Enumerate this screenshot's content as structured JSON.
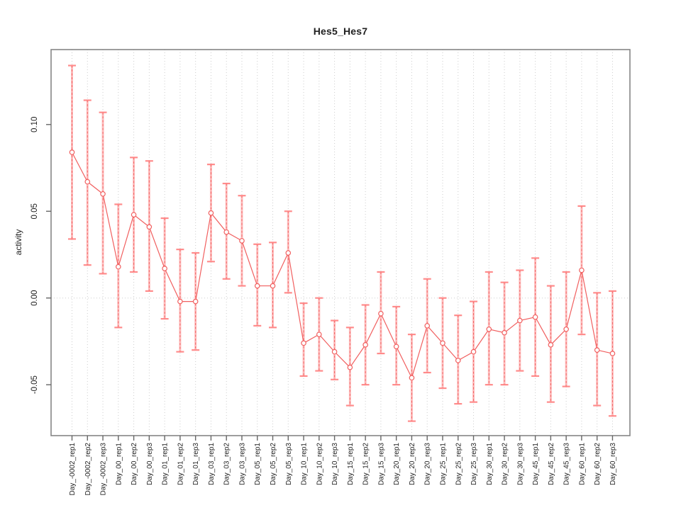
{
  "chart_data": {
    "type": "line",
    "title": "Hes5_Hes7",
    "ylabel": "activity",
    "xlabel": "",
    "ylim": [
      -0.079,
      0.143
    ],
    "yticks": [
      {
        "value": -0.05,
        "label": "-0.05"
      },
      {
        "value": 0.0,
        "label": "0.00"
      },
      {
        "value": 0.05,
        "label": "0.05"
      },
      {
        "value": 0.1,
        "label": "0.10"
      }
    ],
    "grid": {
      "vertical_dotted_per_category": true,
      "horizontal_zero_line_dotted": true
    },
    "legend": "none",
    "marker": "open-circle",
    "categories": [
      "Day_-0002_rep1",
      "Day_-0002_rep2",
      "Day_-0002_rep3",
      "Day_00_rep1",
      "Day_00_rep2",
      "Day_00_rep3",
      "Day_01_rep1",
      "Day_01_rep2",
      "Day_01_rep3",
      "Day_03_rep1",
      "Day_03_rep2",
      "Day_03_rep3",
      "Day_05_rep1",
      "Day_05_rep2",
      "Day_05_rep3",
      "Day_10_rep1",
      "Day_10_rep2",
      "Day_10_rep3",
      "Day_15_rep1",
      "Day_15_rep2",
      "Day_15_rep3",
      "Day_20_rep1",
      "Day_20_rep2",
      "Day_20_rep3",
      "Day_25_rep1",
      "Day_25_rep2",
      "Day_25_rep3",
      "Day_30_rep1",
      "Day_30_rep2",
      "Day_30_rep3",
      "Day_45_rep1",
      "Day_45_rep2",
      "Day_45_rep3",
      "Day_60_rep1",
      "Day_60_rep2",
      "Day_60_rep3"
    ],
    "series": [
      {
        "name": "activity",
        "values": [
          0.084,
          0.067,
          0.06,
          0.018,
          0.048,
          0.041,
          0.017,
          -0.002,
          -0.002,
          0.049,
          0.038,
          0.033,
          0.007,
          0.007,
          0.026,
          -0.026,
          -0.021,
          -0.031,
          -0.04,
          -0.027,
          -0.009,
          -0.028,
          -0.046,
          -0.016,
          -0.026,
          -0.036,
          -0.031,
          -0.018,
          -0.02,
          -0.013,
          -0.011,
          -0.027,
          -0.018,
          0.016,
          -0.03,
          -0.032
        ],
        "upper": [
          0.134,
          0.114,
          0.107,
          0.054,
          0.081,
          0.079,
          0.046,
          0.028,
          0.026,
          0.077,
          0.066,
          0.059,
          0.031,
          0.032,
          0.05,
          -0.003,
          0.0,
          -0.013,
          -0.017,
          -0.004,
          0.015,
          -0.005,
          -0.021,
          0.011,
          0.0,
          -0.01,
          -0.002,
          0.015,
          0.009,
          0.016,
          0.023,
          0.007,
          0.015,
          0.053,
          0.003,
          0.004
        ],
        "lower": [
          0.034,
          0.019,
          0.014,
          -0.017,
          0.015,
          0.004,
          -0.012,
          -0.031,
          -0.03,
          0.021,
          0.011,
          0.007,
          -0.016,
          -0.017,
          0.003,
          -0.045,
          -0.042,
          -0.047,
          -0.062,
          -0.05,
          -0.032,
          -0.05,
          -0.071,
          -0.043,
          -0.052,
          -0.061,
          -0.06,
          -0.05,
          -0.05,
          -0.042,
          -0.045,
          -0.06,
          -0.051,
          -0.021,
          -0.062,
          -0.068
        ]
      }
    ],
    "colors": {
      "series_line": "#f15f5f",
      "marker_stroke": "#f15f5f",
      "marker_fill": "#ffffff",
      "errorbar_band": "#ff9d9d",
      "errorbar_dash": "#ee4f4f",
      "errorbar_cap": "#ff8080",
      "grid": "#cdcdcd",
      "axis_box": "#858585",
      "tick": "#666666",
      "text": "#1f1f1f"
    }
  }
}
